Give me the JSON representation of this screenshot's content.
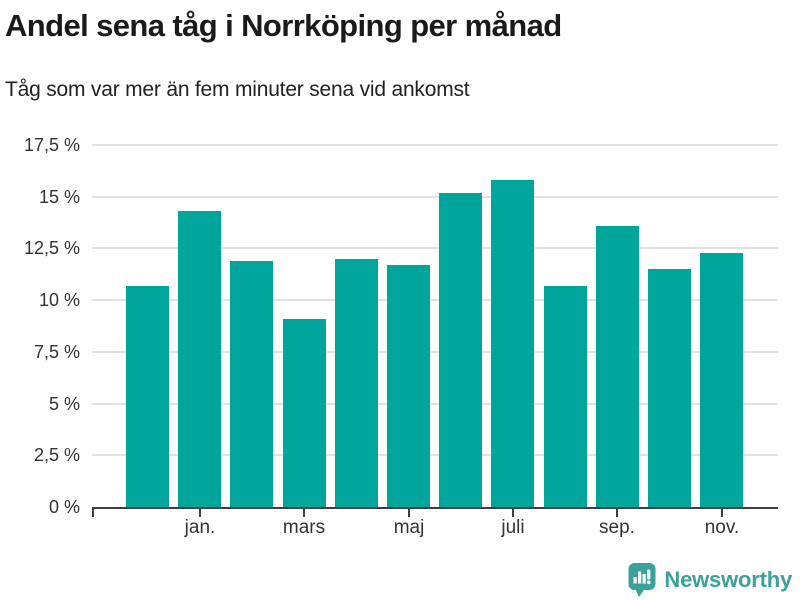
{
  "header": {
    "title": "Andel sena tåg i Norrköping per månad",
    "subtitle": "Tåg som var mer än fem minuter sena vid ankomst"
  },
  "chart_data": {
    "type": "bar",
    "title": "Andel sena tåg i Norrköping per månad",
    "subtitle": "Tåg som var mer än fem minuter sena vid ankomst",
    "unit": "%",
    "values": [
      10.7,
      14.3,
      11.9,
      9.1,
      12.0,
      11.7,
      15.2,
      15.8,
      10.7,
      13.6,
      11.5,
      12.3
    ],
    "x_tick_labels": [
      "jan.",
      "mars",
      "maj",
      "juli",
      "sep.",
      "nov."
    ],
    "x_tick_bar_indexes": [
      1,
      3,
      5,
      7,
      9,
      11
    ],
    "y_tick_labels": [
      "0 %",
      "2,5 %",
      "5 %",
      "7,5 %",
      "10 %",
      "12,5 %",
      "15 %",
      "17,5 %"
    ],
    "y_tick_values": [
      0,
      2.5,
      5,
      7.5,
      10,
      12.5,
      15,
      17.5
    ],
    "ylim": [
      0,
      17.5
    ],
    "bar_color": "#00a69c",
    "grid": "horizontal-only",
    "legend": "none"
  },
  "footer": {
    "brand": "Newsworthy",
    "brand_color": "#3aa29a",
    "logo_icon": "bar-chart-speech-bubble-icon"
  }
}
